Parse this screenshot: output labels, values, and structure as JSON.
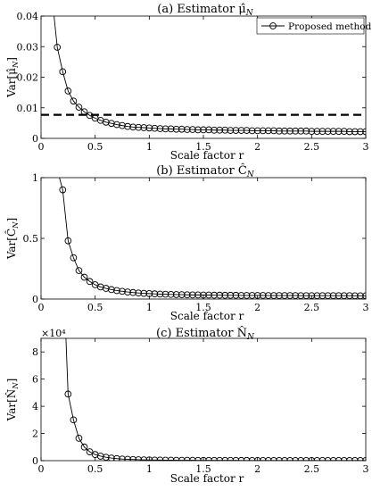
{
  "chart_data": [
    {
      "type": "line",
      "title": "(a) Estimator μ̂_N",
      "xlabel": "Scale factor r",
      "ylabel": "Var[μ̂_N]",
      "xlim": [
        0,
        3
      ],
      "ylim": [
        0,
        0.04
      ],
      "xticks": [
        "0",
        "0.5",
        "1",
        "1.5",
        "2",
        "2.5",
        "3"
      ],
      "yticks": [
        "0",
        "0.01",
        "0.02",
        "0.03",
        "0.04"
      ],
      "ytick_values": [
        0,
        0.01,
        0.02,
        0.03,
        0.04
      ],
      "series": [
        {
          "name": "Proposed method",
          "marker": "circle",
          "x": [
            0.15,
            0.2,
            0.25,
            0.3,
            0.35,
            0.4,
            0.45,
            0.5,
            0.55,
            0.6,
            0.65,
            0.7,
            0.75,
            0.8,
            0.85,
            0.9,
            0.95,
            1.0,
            1.05,
            1.1,
            1.15,
            1.2,
            1.25,
            1.3,
            1.35,
            1.4,
            1.45,
            1.5,
            1.55,
            1.6,
            1.65,
            1.7,
            1.75,
            1.8,
            1.85,
            1.9,
            1.95,
            2.0,
            2.05,
            2.1,
            2.15,
            2.2,
            2.25,
            2.3,
            2.35,
            2.4,
            2.45,
            2.5,
            2.55,
            2.6,
            2.65,
            2.7,
            2.75,
            2.8,
            2.85,
            2.9,
            2.95,
            3.0
          ],
          "y": [
            0.0298,
            0.0218,
            0.0155,
            0.0122,
            0.0102,
            0.0087,
            0.0075,
            0.0066,
            0.0059,
            0.0053,
            0.0049,
            0.0045,
            0.0042,
            0.0039,
            0.0037,
            0.0036,
            0.0035,
            0.0034,
            0.0033,
            0.0032,
            0.0031,
            0.0031,
            0.003,
            0.003,
            0.0029,
            0.0029,
            0.0028,
            0.0028,
            0.0028,
            0.0027,
            0.0027,
            0.0027,
            0.0026,
            0.0026,
            0.0026,
            0.0026,
            0.0025,
            0.0025,
            0.0025,
            0.0025,
            0.0025,
            0.0024,
            0.0024,
            0.0024,
            0.0024,
            0.0024,
            0.0024,
            0.0023,
            0.0023,
            0.0023,
            0.0023,
            0.0023,
            0.0023,
            0.0023,
            0.0022,
            0.0022,
            0.0022,
            0.0022
          ],
          "curve_start": {
            "x": 0.12,
            "y": 0.04
          }
        },
        {
          "style": "dashed",
          "x": [
            0,
            3
          ],
          "y": [
            0.0077,
            0.0077
          ]
        }
      ],
      "legend": {
        "position": "top-right"
      }
    },
    {
      "type": "line",
      "title": "(b) Estimator Ĉ_N",
      "xlabel": "Scale factor r",
      "ylabel": "Var[Ĉ_N]",
      "xlim": [
        0,
        3
      ],
      "ylim": [
        0,
        1
      ],
      "xticks": [
        "0",
        "0.5",
        "1",
        "1.5",
        "2",
        "2.5",
        "3"
      ],
      "yticks": [
        "0",
        "0.5",
        "1"
      ],
      "ytick_values": [
        0,
        0.5,
        1
      ],
      "series": [
        {
          "marker": "circle",
          "x": [
            0.2,
            0.25,
            0.3,
            0.35,
            0.4,
            0.45,
            0.5,
            0.55,
            0.6,
            0.65,
            0.7,
            0.75,
            0.8,
            0.85,
            0.9,
            0.95,
            1.0,
            1.05,
            1.1,
            1.15,
            1.2,
            1.25,
            1.3,
            1.35,
            1.4,
            1.45,
            1.5,
            1.55,
            1.6,
            1.65,
            1.7,
            1.75,
            1.8,
            1.85,
            1.9,
            1.95,
            2.0,
            2.05,
            2.1,
            2.15,
            2.2,
            2.25,
            2.3,
            2.35,
            2.4,
            2.45,
            2.5,
            2.55,
            2.6,
            2.65,
            2.7,
            2.75,
            2.8,
            2.85,
            2.9,
            2.95,
            3.0
          ],
          "y": [
            0.9,
            0.48,
            0.34,
            0.235,
            0.18,
            0.145,
            0.118,
            0.1,
            0.088,
            0.078,
            0.07,
            0.064,
            0.058,
            0.054,
            0.05,
            0.047,
            0.045,
            0.043,
            0.041,
            0.04,
            0.038,
            0.037,
            0.036,
            0.035,
            0.034,
            0.034,
            0.033,
            0.033,
            0.032,
            0.032,
            0.031,
            0.031,
            0.031,
            0.03,
            0.03,
            0.03,
            0.03,
            0.03,
            0.029,
            0.029,
            0.029,
            0.029,
            0.029,
            0.029,
            0.028,
            0.028,
            0.028,
            0.028,
            0.028,
            0.028,
            0.028,
            0.028,
            0.028,
            0.028,
            0.027,
            0.027,
            0.027
          ],
          "curve_start": {
            "x": 0.17,
            "y": 1
          }
        }
      ]
    },
    {
      "type": "line",
      "title": "(c) Estimator N̂_N",
      "xlabel": "Scale factor r",
      "ylabel": "Var[N̂_N]",
      "xlim": [
        0,
        3
      ],
      "ylim": [
        0,
        90000
      ],
      "exponent_label": "×10⁴",
      "xticks": [
        "0",
        "0.5",
        "1",
        "1.5",
        "2",
        "2.5",
        "3"
      ],
      "yticks": [
        "0",
        "2",
        "4",
        "6",
        "8"
      ],
      "ytick_values": [
        0,
        20000,
        40000,
        60000,
        80000
      ],
      "series": [
        {
          "marker": "circle",
          "x": [
            0.25,
            0.3,
            0.35,
            0.4,
            0.45,
            0.5,
            0.55,
            0.6,
            0.65,
            0.7,
            0.75,
            0.8,
            0.85,
            0.9,
            0.95,
            1.0,
            1.05,
            1.1,
            1.15,
            1.2,
            1.25,
            1.3,
            1.35,
            1.4,
            1.45,
            1.5,
            1.55,
            1.6,
            1.65,
            1.7,
            1.75,
            1.8,
            1.85,
            1.9,
            1.95,
            2.0,
            2.05,
            2.1,
            2.15,
            2.2,
            2.25,
            2.3,
            2.35,
            2.4,
            2.45,
            2.5,
            2.55,
            2.6,
            2.65,
            2.7,
            2.75,
            2.8,
            2.85,
            2.9,
            2.95,
            3.0
          ],
          "y": [
            49000,
            30000,
            16500,
            10000,
            6500,
            4500,
            3300,
            2500,
            1900,
            1500,
            1200,
            1000,
            850,
            700,
            600,
            520,
            460,
            410,
            370,
            330,
            300,
            280,
            260,
            240,
            220,
            210,
            200,
            190,
            180,
            170,
            160,
            155,
            150,
            145,
            140,
            135,
            130,
            125,
            120,
            118,
            115,
            112,
            110,
            108,
            106,
            104,
            102,
            100,
            98,
            96,
            95,
            94,
            93,
            92,
            91,
            90
          ],
          "curve_start": {
            "x": 0.23,
            "y": 90000
          }
        }
      ]
    }
  ]
}
